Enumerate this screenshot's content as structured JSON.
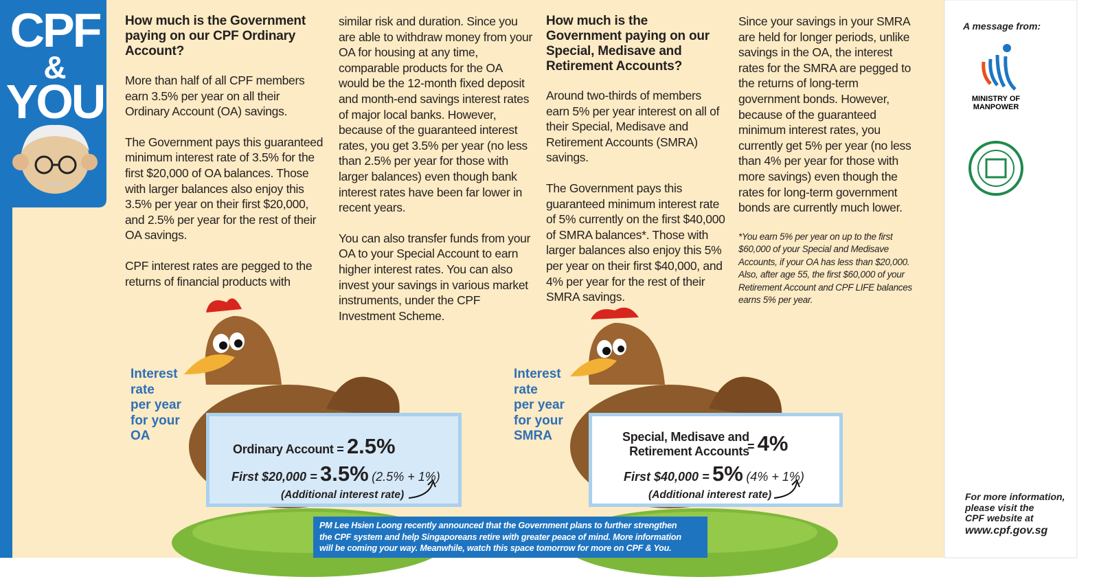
{
  "brand": {
    "line1": "CPF",
    "line2": "&",
    "line3": "YOU"
  },
  "columns": [
    {
      "heading": "How much is the Government paying on our CPF Ordinary Account?",
      "paragraphs": [
        "More than half of all CPF members earn 3.5% per year on all their Ordinary Account (OA) savings.",
        "The Government pays this guaranteed minimum interest rate of 3.5% for the first $20,000 of OA balances. Those with larger balances also enjoy this 3.5% per year on their first $20,000, and 2.5% per year for the rest of their OA savings.",
        "CPF interest rates are pegged to the returns of financial products with"
      ]
    },
    {
      "paragraphs": [
        "similar risk and duration. Since you are able to withdraw money from your OA for housing at any time, comparable products for the OA would be the 12-month fixed deposit and month-end savings interest rates of major local banks. However, because of the guaranteed interest rates, you get 3.5% per year (no less than 2.5% per year for those with larger balances) even though bank interest rates have been far lower in recent years.",
        "You can also transfer funds from your OA to your Special Account to earn higher interest rates. You can also invest your savings in various market instruments, under the CPF Investment Scheme."
      ]
    },
    {
      "heading": "How much is the Government paying on our Special, Medisave and Retirement Accounts?",
      "paragraphs": [
        "Around two-thirds of members earn 5% per year interest on all of their Special, Medisave and Retirement Accounts (SMRA) savings.",
        "The Government pays this guaranteed minimum interest rate of 5% currently on the first $40,000 of SMRA balances*. Those with larger balances also enjoy this 5% per year on their first $40,000, and 4% per year for the rest of their SMRA savings."
      ]
    },
    {
      "paragraphs": [
        "Since your savings in your SMRA are held for longer periods, unlike savings in the OA, the interest rates for the SMRA are pegged to the returns of long-term government bonds. However, because of the guaranteed minimum interest rates, you currently get 5% per year (no less than 4% per year for those with more savings) even though the rates for long-term government bonds are currently much lower."
      ],
      "footnote": "*You earn 5% per year on up to the first $60,000 of your Special and Medisave Accounts, if your OA has less than $20,000. Also, after age 55, the first $60,000 of your Retirement Account and CPF LIFE balances earns 5% per year."
    }
  ],
  "panels": [
    {
      "label_lines": [
        "Interest",
        "rate",
        "per year",
        "for your",
        "OA"
      ],
      "account_lines": [
        "Ordinary Account ="
      ],
      "rate": "2.5%",
      "tier": "First $20,000 =",
      "tier_rate": "3.5%",
      "breakdown": "(2.5% + 1%)",
      "note": "(Additional interest rate)"
    },
    {
      "label_lines": [
        "Interest",
        "rate",
        "per year",
        "for your",
        "SMRA"
      ],
      "account_lines": [
        "Special, Medisave and",
        "Retirement Accounts"
      ],
      "equals": "=",
      "rate": "4%",
      "tier": "First $40,000 =",
      "tier_rate": "5%",
      "breakdown": "(4% + 1%)",
      "note": "(Additional interest rate)"
    }
  ],
  "announcement": {
    "lines": [
      "PM Lee Hsien Loong recently announced that the Government plans to further strengthen",
      "the CPF system and help Singaporeans retire with greater peace of mind. More information",
      "will be coming your way. Meanwhile, watch this space tomorrow for more on CPF & You."
    ]
  },
  "sidebar": {
    "message": "A message from:",
    "ministry_lines": [
      "MINISTRY OF",
      "MANPOWER"
    ],
    "more_info_lines": [
      "For more information,",
      "please visit the",
      "CPF website at"
    ],
    "url": "www.cpf.gov.sg"
  }
}
